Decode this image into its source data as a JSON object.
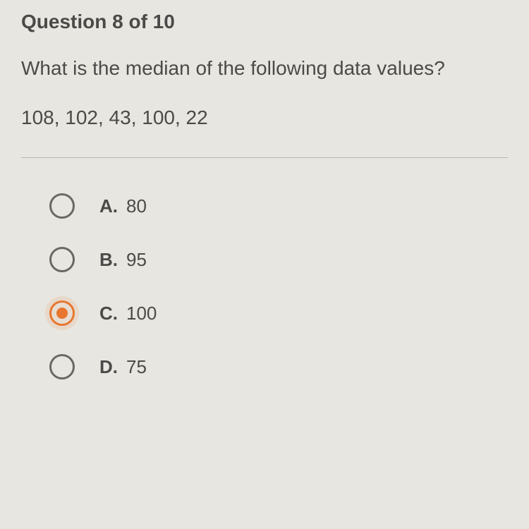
{
  "question": {
    "header": "Question 8 of 10",
    "text": "What is the median of the following data values?",
    "data": "108, 102, 43, 100, 22"
  },
  "options": [
    {
      "letter": "A.",
      "value": "80",
      "selected": false
    },
    {
      "letter": "B.",
      "value": "95",
      "selected": false
    },
    {
      "letter": "C.",
      "value": "100",
      "selected": true
    },
    {
      "letter": "D.",
      "value": "75",
      "selected": false
    }
  ],
  "styling": {
    "background_color": "#e8e6e0",
    "text_color": "#4a4a48",
    "radio_border_color": "#6a6862",
    "selected_color": "#e87630",
    "divider_color": "#b8b6b0",
    "header_fontsize": 28,
    "body_fontsize": 28,
    "option_fontsize": 26,
    "radio_size": 36,
    "option_spacing": 40
  }
}
